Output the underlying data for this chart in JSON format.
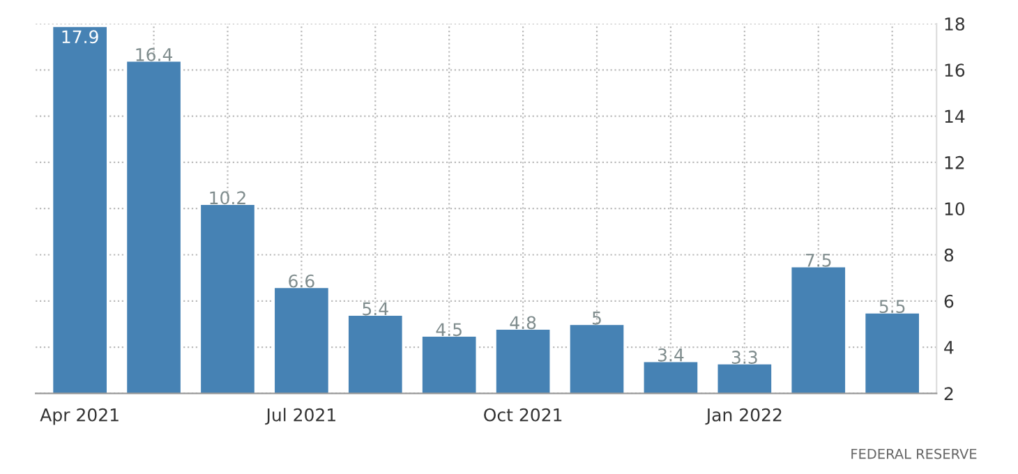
{
  "chart_data": {
    "type": "bar",
    "categories": [
      "Apr 2021",
      null,
      null,
      "Jul 2021",
      null,
      null,
      "Oct 2021",
      null,
      null,
      "Jan 2022",
      null,
      null
    ],
    "values": [
      17.9,
      16.4,
      10.2,
      6.6,
      5.4,
      4.5,
      4.8,
      5,
      3.4,
      3.3,
      7.5,
      5.5
    ],
    "color": "#4682b4",
    "ylim": [
      2,
      18
    ],
    "yticks": [
      2,
      4,
      6,
      8,
      10,
      12,
      14,
      16,
      18
    ],
    "grid": true,
    "data_labels": true,
    "annotations": [
      "FEDERAL RESERVE"
    ]
  }
}
